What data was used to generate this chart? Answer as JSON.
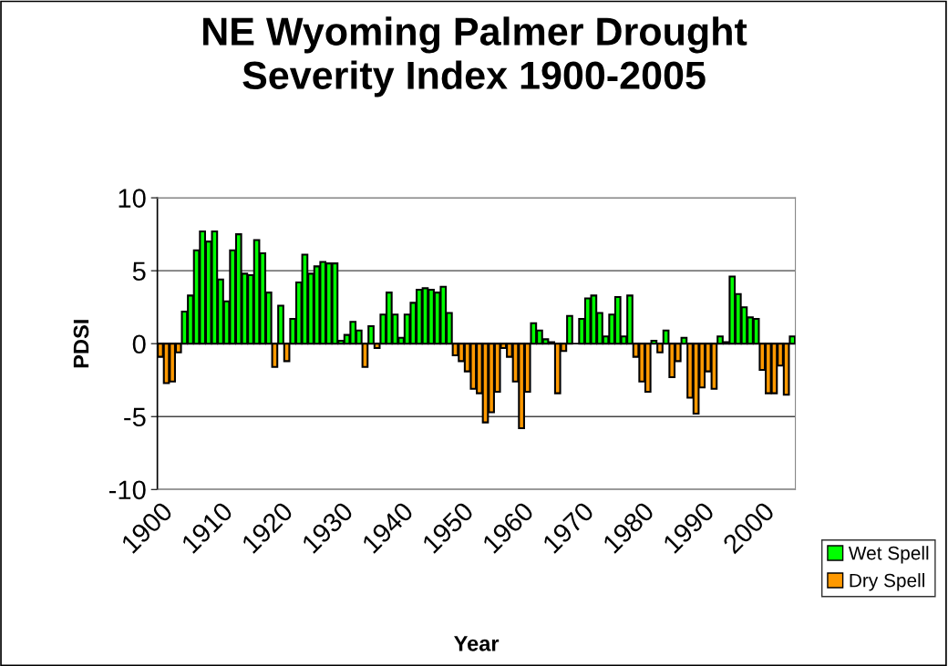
{
  "chart_data": {
    "type": "bar",
    "title": "NE Wyoming Palmer Drought Severity Index 1900-2005",
    "xlabel": "Year",
    "ylabel": "PDSI",
    "categories": [
      "1900",
      null,
      null,
      null,
      null,
      null,
      null,
      null,
      null,
      null,
      "1910",
      null,
      null,
      null,
      null,
      null,
      null,
      null,
      null,
      null,
      "1920",
      null,
      null,
      null,
      null,
      null,
      null,
      null,
      null,
      null,
      "1930",
      null,
      null,
      null,
      null,
      null,
      null,
      null,
      null,
      null,
      "1940",
      null,
      null,
      null,
      null,
      null,
      null,
      null,
      null,
      null,
      "1950",
      null,
      null,
      null,
      null,
      null,
      null,
      null,
      null,
      null,
      "1960",
      null,
      null,
      null,
      null,
      null,
      null,
      null,
      null,
      null,
      "1970",
      null,
      null,
      null,
      null,
      null,
      null,
      null,
      null,
      null,
      "1980",
      null,
      null,
      null,
      null,
      null,
      null,
      null,
      null,
      null,
      "1990",
      null,
      null,
      null,
      null,
      null,
      null,
      null,
      null,
      null,
      "2000",
      null,
      null,
      null,
      null,
      null
    ],
    "series": [
      {
        "name": "Wet Spell",
        "color": "#00ff00",
        "values": [
          null,
          null,
          null,
          null,
          2.2,
          3.3,
          6.4,
          7.7,
          7.0,
          7.7,
          4.4,
          2.9,
          6.4,
          7.5,
          4.8,
          4.7,
          7.1,
          6.2,
          3.5,
          null,
          2.6,
          null,
          1.7,
          4.2,
          6.1,
          4.8,
          5.3,
          5.6,
          5.5,
          5.5,
          0.2,
          0.6,
          1.5,
          0.9,
          null,
          1.2,
          null,
          2.0,
          3.5,
          2.0,
          0.4,
          2.0,
          2.8,
          3.7,
          3.8,
          3.7,
          3.5,
          3.9,
          2.1,
          null,
          null,
          null,
          null,
          null,
          null,
          null,
          null,
          null,
          null,
          null,
          null,
          null,
          1.4,
          0.9,
          0.3,
          0.1,
          null,
          null,
          1.9,
          null,
          1.7,
          3.1,
          3.3,
          2.1,
          0.5,
          2.0,
          3.2,
          0.5,
          3.3,
          null,
          null,
          null,
          0.2,
          null,
          0.9,
          null,
          null,
          0.4,
          null,
          null,
          null,
          null,
          null,
          0.5,
          0.1,
          4.6,
          3.4,
          2.5,
          1.8,
          1.7,
          null,
          null,
          null,
          null,
          null,
          0.5
        ]
      },
      {
        "name": "Dry Spell",
        "color": "#ff9900",
        "values": [
          -0.9,
          -2.7,
          -2.6,
          -0.6,
          null,
          null,
          null,
          null,
          null,
          null,
          null,
          null,
          null,
          null,
          null,
          null,
          null,
          null,
          null,
          -1.6,
          null,
          -1.2,
          null,
          null,
          null,
          null,
          null,
          null,
          null,
          null,
          null,
          null,
          null,
          null,
          -1.6,
          null,
          -0.3,
          null,
          null,
          null,
          null,
          null,
          null,
          null,
          null,
          null,
          null,
          null,
          null,
          -0.8,
          -1.2,
          -1.9,
          -3.1,
          -3.4,
          -5.4,
          -4.7,
          -3.3,
          -0.3,
          -0.9,
          -2.6,
          -5.8,
          -3.3,
          null,
          null,
          null,
          null,
          -3.4,
          -0.5,
          null,
          null,
          null,
          null,
          null,
          null,
          null,
          null,
          null,
          null,
          null,
          -0.9,
          -2.6,
          -3.3,
          null,
          -0.6,
          null,
          -2.3,
          -1.2,
          null,
          -3.7,
          -4.8,
          -3.0,
          -1.9,
          -3.1,
          null,
          null,
          null,
          null,
          null,
          null,
          null,
          -1.8,
          -3.4,
          -3.4,
          -1.5,
          -3.5,
          null
        ]
      }
    ],
    "ylim": [
      -10,
      10
    ],
    "yticks": [
      -10,
      -5,
      0,
      5,
      10
    ],
    "grid": "y",
    "legend": "right"
  }
}
